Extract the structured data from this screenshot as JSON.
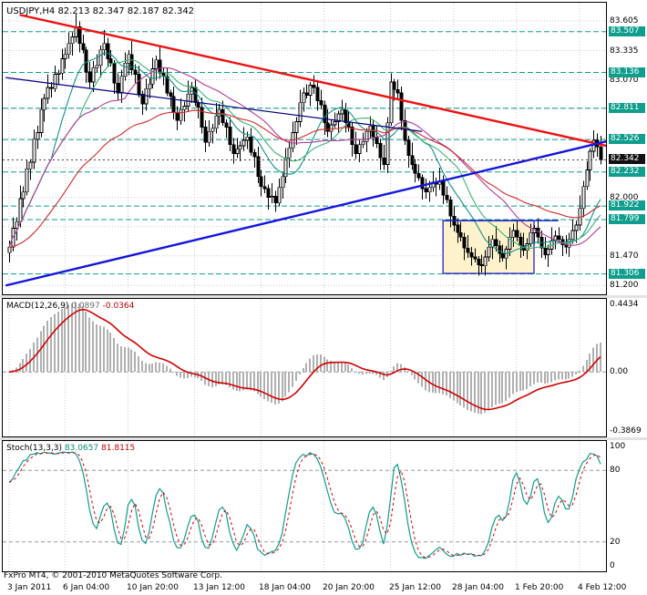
{
  "window": {
    "title_symbol": "USDJPY,H4",
    "ohlc": {
      "open": "82.213",
      "high": "82.347",
      "low": "82.187",
      "close": "82.342"
    }
  },
  "footer": {
    "copyright": "FxPro MT4, © 2001-2010 MetaQuotes Software Corp."
  },
  "colors": {
    "level_teal": "#0f9e8e",
    "current_badge_bg": "#111111",
    "trend_red": "#ee1111",
    "trend_blue": "#1414dd",
    "minor_navy": "#000080",
    "grid": "#c9c9c9",
    "candle": "#000000",
    "bull_fill": "#ffffff",
    "bear_fill": "#000000",
    "hist_gray": "#b0b0b0",
    "macd_signal": "#d40000",
    "stoch_main": "#0f9e8e",
    "stoch_signal": "#d40000",
    "box_fill": "#fdf2cc",
    "box_border": "#2222cc",
    "ma_teal": "#0d9488",
    "ma_green": "#3cb371",
    "ma_violet": "#b03a9a",
    "ma_red": "#d42a2a"
  },
  "price_scale": {
    "plain_labels": [
      "83.605",
      "83.335",
      "83.070",
      "82.000",
      "81.470",
      "81.200"
    ],
    "grid_levels": [
      83.605,
      83.335,
      83.07,
      82.805,
      82.54,
      82.27,
      82.0,
      81.735,
      81.47,
      81.2
    ],
    "level_badges": [
      "83.507",
      "83.136",
      "82.811",
      "82.526",
      "82.232",
      "81.922",
      "81.799",
      "81.306"
    ],
    "current_price": "82.342",
    "range_min": 81.17,
    "range_max": 83.72
  },
  "time_scale": {
    "labels": [
      {
        "text": "3 Jan 2011",
        "bar": 0
      },
      {
        "text": "6 Jan 04:00",
        "bar": 16
      },
      {
        "text": "10 Jan 20:00",
        "bar": 34
      },
      {
        "text": "13 Jan 12:00",
        "bar": 53
      },
      {
        "text": "18 Jan 04:00",
        "bar": 72
      },
      {
        "text": "20 Jan 20:00",
        "bar": 90
      },
      {
        "text": "25 Jan 12:00",
        "bar": 109
      },
      {
        "text": "28 Jan 04:00",
        "bar": 127
      },
      {
        "text": "1 Feb 20:00",
        "bar": 145
      },
      {
        "text": "4 Feb 12:00",
        "bar": 163
      }
    ]
  },
  "macd_panel": {
    "name": "MACD(12,26,9)",
    "value_main": "0.0897",
    "value_signal": "-0.0364",
    "scale_top": "0.4434",
    "scale_zero": "0.00",
    "scale_bottom": "-0.3869",
    "ylim": [
      -0.3869,
      0.4434
    ],
    "fast": 12,
    "slow": 26,
    "smooth": 9
  },
  "stoch_panel": {
    "name": "Stoch(13,3,3)",
    "value_main": "83.0657",
    "value_signal": "81.8115",
    "scale_labels": [
      "100",
      "80",
      "20",
      "0"
    ],
    "levels": [
      80,
      20
    ],
    "k": 13,
    "d": 3,
    "slowing": 3
  },
  "chart_data": [
    {
      "type": "candlestick",
      "title": "USDJPY,H4",
      "price_range": [
        81.17,
        83.72
      ],
      "first_open": 81.5,
      "closes": [
        81.55,
        81.72,
        81.78,
        81.99,
        82.05,
        82.26,
        82.32,
        82.53,
        82.59,
        82.8,
        82.9,
        83.0,
        82.99,
        83.12,
        83.13,
        83.26,
        83.3,
        83.4,
        83.46,
        83.55,
        83.4,
        83.34,
        83.14,
        83.05,
        83.18,
        83.2,
        83.34,
        83.4,
        83.26,
        83.22,
        83.04,
        82.95,
        83.1,
        83.22,
        83.3,
        83.16,
        83.12,
        82.94,
        82.85,
        82.99,
        83.03,
        83.17,
        83.25,
        83.13,
        83.1,
        82.95,
        82.92,
        82.77,
        82.7,
        82.8,
        82.83,
        82.94,
        83.0,
        82.86,
        82.82,
        82.64,
        82.5,
        82.6,
        82.63,
        82.74,
        82.8,
        82.68,
        82.64,
        82.48,
        82.4,
        82.44,
        82.47,
        82.52,
        82.55,
        82.41,
        82.37,
        82.19,
        82.1,
        82.08,
        82.0,
        82.01,
        81.95,
        82.09,
        82.19,
        82.36,
        82.45,
        82.59,
        82.69,
        82.86,
        82.95,
        82.93,
        83.02,
        83.0,
        82.88,
        82.84,
        82.68,
        82.6,
        82.66,
        82.69,
        82.76,
        82.8,
        82.68,
        82.64,
        82.48,
        82.4,
        82.48,
        82.51,
        82.6,
        82.65,
        82.55,
        82.49,
        82.36,
        82.3,
        82.68,
        83.05,
        82.98,
        82.95,
        82.7,
        82.52,
        82.38,
        82.3,
        82.22,
        82.18,
        82.08,
        82.05,
        82.09,
        82.14,
        82.12,
        82.15,
        82.02,
        81.98,
        81.83,
        81.75,
        81.68,
        81.64,
        81.54,
        81.5,
        81.46,
        81.44,
        81.39,
        81.38,
        81.46,
        81.55,
        81.62,
        81.56,
        81.49,
        81.45,
        81.53,
        81.64,
        81.7,
        81.64,
        81.56,
        81.52,
        81.58,
        81.68,
        81.72,
        81.64,
        81.54,
        81.48,
        81.53,
        81.61,
        81.65,
        81.62,
        81.57,
        81.55,
        81.62,
        81.7,
        81.75,
        81.9,
        82.1,
        82.25,
        82.42,
        82.52,
        82.46,
        82.34
      ],
      "wick_up": [
        0.06,
        0.1,
        0.04,
        0.12,
        0.05,
        0.08,
        0.03,
        0.09
      ],
      "wick_down": [
        0.09,
        0.04,
        0.11,
        0.05,
        0.08,
        0.03,
        0.1,
        0.06
      ],
      "horizontal_levels": [
        83.507,
        83.136,
        82.811,
        82.526,
        82.232,
        81.922,
        81.799,
        81.306
      ],
      "current_price": 82.342,
      "trendlines": [
        {
          "name": "descending-resistance-trendline",
          "color_key": "trend_red",
          "bar1": 3,
          "price1": 83.66,
          "bar2": 172,
          "price2": 82.46,
          "width": 2.4
        },
        {
          "name": "ascending-support-trendline",
          "color_key": "trend_blue",
          "bar1": -1,
          "price1": 81.2,
          "bar2": 172,
          "price2": 82.52,
          "width": 2.4
        },
        {
          "name": "minor-descending-line",
          "color_key": "minor_navy",
          "bar1": -1,
          "price1": 83.09,
          "bar2": 118,
          "price2": 82.6,
          "width": 1.2
        }
      ],
      "rectangle": {
        "bar1": 124,
        "bar2": 150,
        "price_top": 81.79,
        "price_bottom": 81.31
      },
      "extra_line": {
        "bar1": 124,
        "bar2": 157,
        "price": 81.79
      },
      "moving_averages": [
        {
          "period": 13,
          "method": "sma",
          "color_key": "ma_teal"
        },
        {
          "period": 21,
          "method": "sma",
          "color_key": "ma_green"
        },
        {
          "period": 34,
          "method": "sma",
          "color_key": "ma_violet"
        },
        {
          "period": 55,
          "method": "ema",
          "color_key": "ma_red"
        }
      ]
    },
    {
      "type": "bar",
      "name": "MACD(12,26,9)",
      "ylim": [
        -0.3869,
        0.4434
      ],
      "last_main": 0.0897,
      "last_signal": -0.0364
    },
    {
      "type": "line",
      "name": "Stoch(13,3,3)",
      "ylim": [
        0,
        100
      ],
      "levels": [
        80,
        20
      ],
      "last_main": 83.0657,
      "last_signal": 81.8115
    }
  ]
}
